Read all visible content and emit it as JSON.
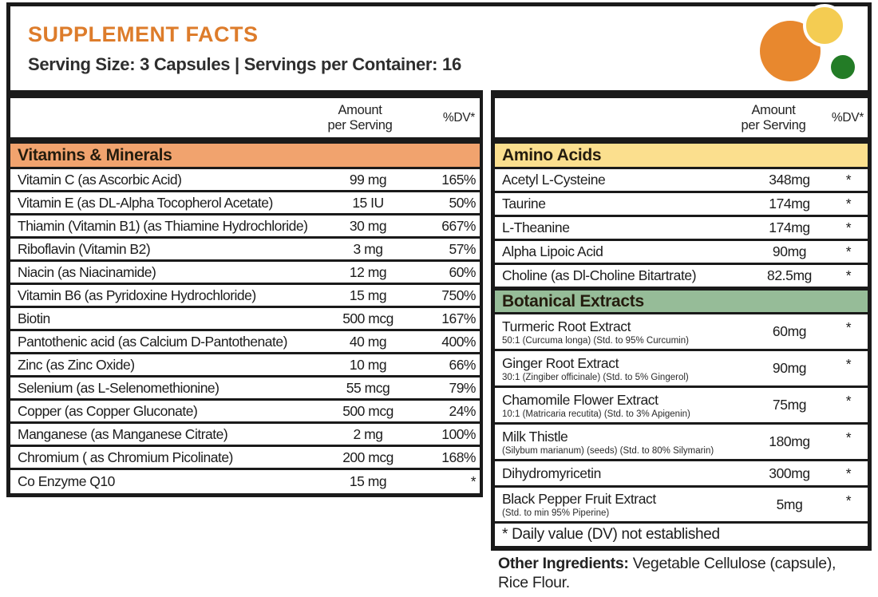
{
  "header": {
    "title": "SUPPLEMENT FACTS",
    "serving_line": "Serving Size: 3 Capsules | Servings per Container: 16"
  },
  "logo": {
    "circles": [
      {
        "name": "orange",
        "color": "#E8882E"
      },
      {
        "name": "yellow",
        "color": "#F4CC52"
      },
      {
        "name": "green",
        "color": "#237C26"
      }
    ]
  },
  "table_headers": {
    "amount_line1": "Amount",
    "amount_line2": "per Serving",
    "dv": "%DV*"
  },
  "left_table": {
    "section_label": "Vitamins & Minerals",
    "section_color": "#F1A36E",
    "rows": [
      {
        "name": "Vitamin C (as Ascorbic Acid)",
        "amount": "99 mg",
        "dv": "165%"
      },
      {
        "name": "Vitamin E (as DL-Alpha Tocopherol Acetate)",
        "amount": "15 IU",
        "dv": "50%"
      },
      {
        "name": "Thiamin (Vitamin B1) (as Thiamine Hydrochloride)",
        "amount": "30 mg",
        "dv": "667%"
      },
      {
        "name": "Riboflavin (Vitamin B2)",
        "amount": "3 mg",
        "dv": "57%"
      },
      {
        "name": "Niacin (as Niacinamide)",
        "amount": "12 mg",
        "dv": "60%"
      },
      {
        "name": "Vitamin B6 (as Pyridoxine Hydrochloride)",
        "amount": "15 mg",
        "dv": "750%"
      },
      {
        "name": "Biotin",
        "amount": "500 mcg",
        "dv": "167%"
      },
      {
        "name": "Pantothenic acid (as Calcium D-Pantothenate)",
        "amount": "40 mg",
        "dv": "400%"
      },
      {
        "name": "Zinc (as Zinc Oxide)",
        "amount": "10 mg",
        "dv": "66%"
      },
      {
        "name": "Selenium (as L-Selenomethionine)",
        "amount": "55 mcg",
        "dv": "79%"
      },
      {
        "name": "Copper (as Copper Gluconate)",
        "amount": "500 mcg",
        "dv": "24%"
      },
      {
        "name": "Manganese (as Manganese Citrate)",
        "amount": "2 mg",
        "dv": "100%"
      },
      {
        "name": "Chromium ( as Chromium Picolinate)",
        "amount": "200 mcg",
        "dv": "168%"
      },
      {
        "name": "Co Enzyme Q10",
        "amount": "15 mg",
        "dv": "*"
      }
    ]
  },
  "right_table": {
    "sections": [
      {
        "label": "Amino Acids",
        "color": "#FBDF8E",
        "rows": [
          {
            "name": "Acetyl L-Cysteine",
            "amount": "348mg",
            "dv": "*"
          },
          {
            "name": "Taurine",
            "amount": "174mg",
            "dv": "*"
          },
          {
            "name": "L-Theanine",
            "amount": "174mg",
            "dv": "*"
          },
          {
            "name": "Alpha Lipoic Acid",
            "amount": "90mg",
            "dv": "*"
          },
          {
            "name": "Choline (as Dl-Choline Bitartrate)",
            "amount": "82.5mg",
            "dv": "*"
          }
        ]
      },
      {
        "label": "Botanical Extracts",
        "color": "#96BC98",
        "rows": [
          {
            "name": "Turmeric Root Extract",
            "sub": "50:1 (Curcuma longa) (Std. to 95% Curcumin)",
            "amount": "60mg",
            "dv": "*"
          },
          {
            "name": "Ginger Root Extract",
            "sub": "30:1 (Zingiber officinale) (Std. to 5% Gingerol)",
            "amount": "90mg",
            "dv": "*"
          },
          {
            "name": "Chamomile Flower Extract",
            "sub": "10:1 (Matricaria recutita) (Std. to 3% Apigenin)",
            "amount": "75mg",
            "dv": "*"
          },
          {
            "name": "Milk Thistle",
            "sub": "(Silybum marianum) (seeds) (Std. to 80% Silymarin)",
            "amount": "180mg",
            "dv": "*"
          },
          {
            "name": "Dihydromyricetin",
            "amount": "300mg",
            "dv": "*"
          },
          {
            "name": "Black Pepper Fruit Extract",
            "sub": "(Std. to min 95% Piperine)",
            "amount": "5mg",
            "dv": "*"
          }
        ]
      }
    ],
    "footnote": "* Daily value (DV) not established"
  },
  "other_ingredients": {
    "label": "Other Ingredients:",
    "text": " Vegetable Cellulose (capsule), Rice Flour."
  }
}
